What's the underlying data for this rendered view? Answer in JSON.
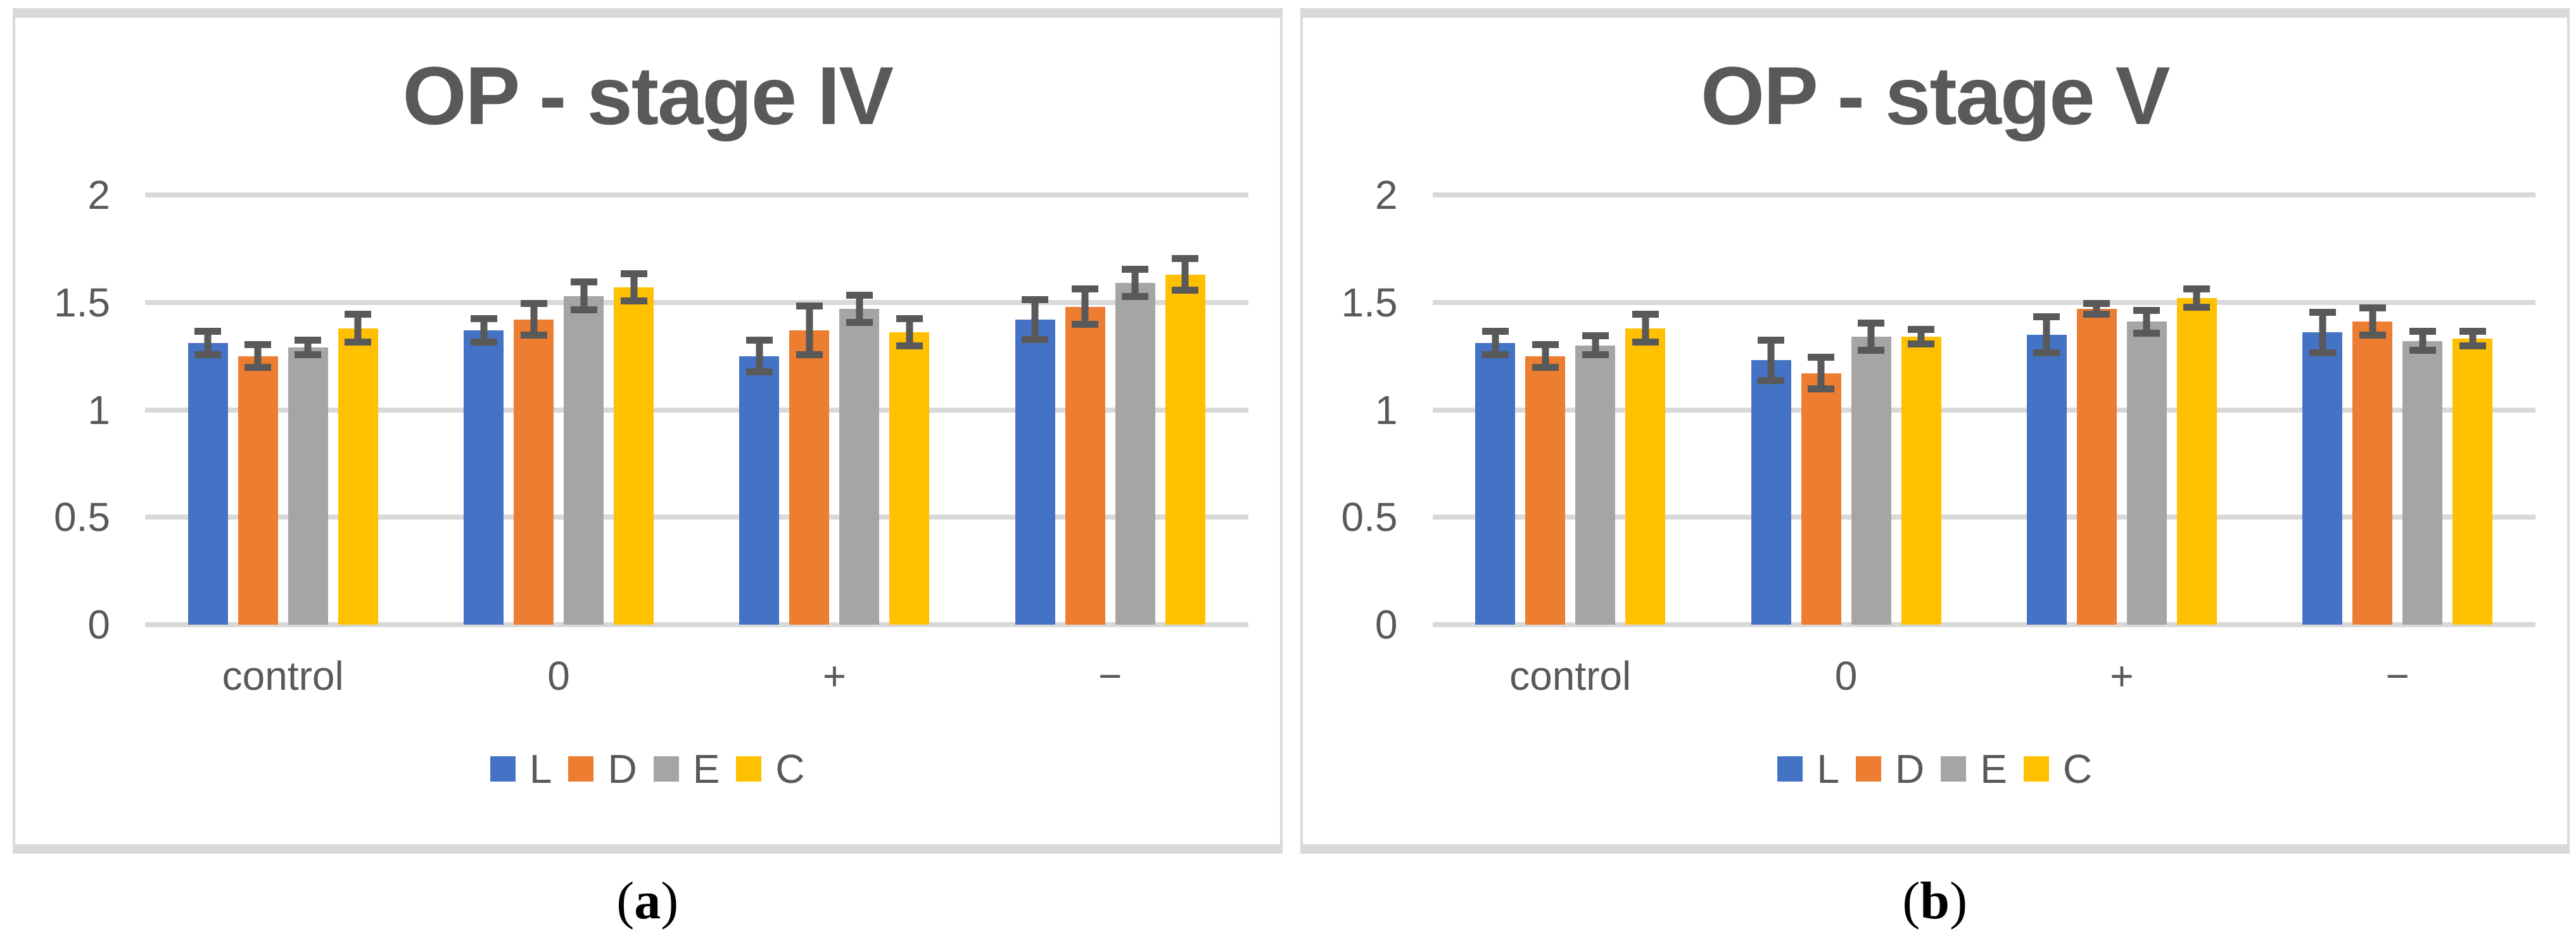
{
  "page": {
    "captions": [
      {
        "open": "(",
        "letter": "a",
        "close": ")"
      },
      {
        "open": "(",
        "letter": "b",
        "close": ")"
      }
    ]
  },
  "colors": {
    "text": "#595959",
    "gridline": "#D9D9D9",
    "panel_border": "#D9D9D9",
    "error_bar": "#595959",
    "series": {
      "L": "#4472C4",
      "D": "#ED7D31",
      "E": "#A5A5A5",
      "C": "#FFC000"
    }
  },
  "chart_data": [
    {
      "type": "bar",
      "title": "OP - stage IV",
      "categories": [
        "control",
        "0",
        "+",
        "−"
      ],
      "series": [
        {
          "name": "L",
          "color": "#4472C4",
          "values": [
            1.31,
            1.37,
            1.25,
            1.42
          ],
          "errors": [
            0.07,
            0.07,
            0.09,
            0.11
          ]
        },
        {
          "name": "D",
          "color": "#ED7D31",
          "values": [
            1.25,
            1.42,
            1.37,
            1.48
          ],
          "errors": [
            0.07,
            0.09,
            0.13,
            0.1
          ]
        },
        {
          "name": "E",
          "color": "#A5A5A5",
          "values": [
            1.29,
            1.53,
            1.47,
            1.59
          ],
          "errors": [
            0.05,
            0.08,
            0.08,
            0.08
          ]
        },
        {
          "name": "C",
          "color": "#FFC000",
          "values": [
            1.38,
            1.57,
            1.36,
            1.63
          ],
          "errors": [
            0.08,
            0.08,
            0.08,
            0.09
          ]
        }
      ],
      "ylim": [
        0,
        2
      ],
      "yticks": [
        0,
        0.5,
        1,
        1.5,
        2
      ],
      "ytick_labels": [
        "0",
        "0.5",
        "1",
        "1.5",
        "2"
      ],
      "xlabel": "",
      "ylabel": "",
      "grid": true,
      "legend_position": "bottom"
    },
    {
      "type": "bar",
      "title": "OP - stage V",
      "categories": [
        "control",
        "0",
        "+",
        "−"
      ],
      "series": [
        {
          "name": "L",
          "color": "#4472C4",
          "values": [
            1.31,
            1.23,
            1.35,
            1.36
          ],
          "errors": [
            0.07,
            0.11,
            0.1,
            0.11
          ]
        },
        {
          "name": "D",
          "color": "#ED7D31",
          "values": [
            1.25,
            1.17,
            1.47,
            1.41
          ],
          "errors": [
            0.07,
            0.09,
            0.04,
            0.08
          ]
        },
        {
          "name": "E",
          "color": "#A5A5A5",
          "values": [
            1.3,
            1.34,
            1.41,
            1.32
          ],
          "errors": [
            0.06,
            0.08,
            0.07,
            0.06
          ]
        },
        {
          "name": "C",
          "color": "#FFC000",
          "values": [
            1.38,
            1.34,
            1.52,
            1.33
          ],
          "errors": [
            0.08,
            0.05,
            0.06,
            0.05
          ]
        }
      ],
      "ylim": [
        0,
        2
      ],
      "yticks": [
        0,
        0.5,
        1,
        1.5,
        2
      ],
      "ytick_labels": [
        "0",
        "0.5",
        "1",
        "1.5",
        "2"
      ],
      "xlabel": "",
      "ylabel": "",
      "grid": true,
      "legend_position": "bottom"
    }
  ]
}
